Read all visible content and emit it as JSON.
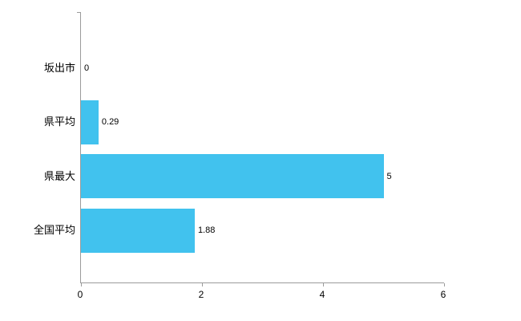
{
  "chart_data": {
    "type": "bar",
    "orientation": "horizontal",
    "title": "",
    "xlabel": "",
    "ylabel": "",
    "categories": [
      "坂出市",
      "県平均",
      "県最大",
      "全国平均"
    ],
    "values": [
      0,
      0.29,
      5,
      1.88
    ],
    "value_labels": [
      "0",
      "0.29",
      "5",
      "1.88"
    ],
    "xlim": [
      0,
      6
    ],
    "x_ticks": [
      0,
      2,
      4,
      6
    ],
    "bar_color": "#41c2ee",
    "axis_color": "#9b9b9b",
    "text_color": "#000000",
    "grid": false,
    "legend": false
  }
}
